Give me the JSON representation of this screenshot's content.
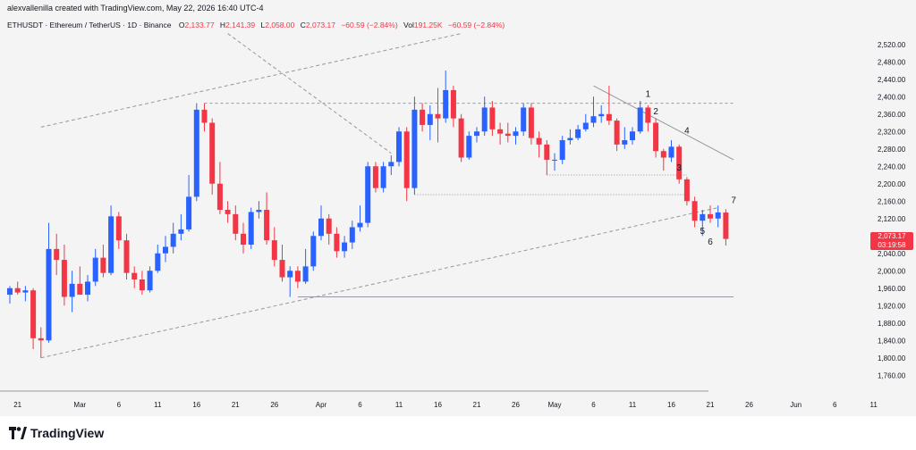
{
  "header": {
    "credit": "alexvallenilla created with TradingView.com, May 22, 2026 16:40 UTC-4",
    "symbol": "ETHUSDT · Ethereum / TetherUS · 1D · Binance",
    "open_label": "O",
    "open": "2,133.77",
    "high_label": "H",
    "high": "2,141.39",
    "low_label": "L",
    "low": "2,058.00",
    "close_label": "C",
    "close": "2,073.17",
    "change": "−60.59 (−2.84%)",
    "vol_label": "Vol",
    "vol": "191.25K",
    "vol_change": "−60.59 (−2.84%)"
  },
  "price_tag": {
    "price": "2,073.17",
    "countdown": "03:19:58"
  },
  "logo": {
    "text": "TradingView"
  },
  "colors": {
    "up": "#2962ff",
    "down": "#f23645",
    "background": "#f4f4f4",
    "text": "#131722",
    "grid_line": "#9598a1"
  },
  "chart_data": {
    "type": "candlestick",
    "y_axis": {
      "range": [
        1740,
        2540
      ],
      "ticks": [
        "1,760.00",
        "1,800.00",
        "1,840.00",
        "1,880.00",
        "1,920.00",
        "1,960.00",
        "2,000.00",
        "2,040.00",
        "2,080.00",
        "2,120.00",
        "2,160.00",
        "2,200.00",
        "2,240.00",
        "2,280.00",
        "2,320.00",
        "2,360.00",
        "2,400.00",
        "2,440.00",
        "2,480.00",
        "2,520.00"
      ]
    },
    "x_axis": {
      "start_date": "2026-02-20",
      "end_date": "2026-06-13",
      "ticks": [
        {
          "label": "21",
          "date": "2026-02-21"
        },
        {
          "label": "Mar",
          "date": "2026-03-01"
        },
        {
          "label": "6",
          "date": "2026-03-06"
        },
        {
          "label": "11",
          "date": "2026-03-11"
        },
        {
          "label": "16",
          "date": "2026-03-16"
        },
        {
          "label": "21",
          "date": "2026-03-21"
        },
        {
          "label": "26",
          "date": "2026-03-26"
        },
        {
          "label": "Apr",
          "date": "2026-04-01"
        },
        {
          "label": "6",
          "date": "2026-04-06"
        },
        {
          "label": "11",
          "date": "2026-04-11"
        },
        {
          "label": "16",
          "date": "2026-04-16"
        },
        {
          "label": "21",
          "date": "2026-04-21"
        },
        {
          "label": "26",
          "date": "2026-04-26"
        },
        {
          "label": "May",
          "date": "2026-05-01"
        },
        {
          "label": "6",
          "date": "2026-05-06"
        },
        {
          "label": "11",
          "date": "2026-05-11"
        },
        {
          "label": "16",
          "date": "2026-05-16"
        },
        {
          "label": "21",
          "date": "2026-05-21"
        },
        {
          "label": "26",
          "date": "2026-05-26"
        },
        {
          "label": "Jun",
          "date": "2026-06-01"
        },
        {
          "label": "6",
          "date": "2026-06-06"
        },
        {
          "label": "11",
          "date": "2026-06-11"
        }
      ]
    },
    "candles": [
      {
        "date": "2026-02-20",
        "o": 1945,
        "h": 1965,
        "l": 1925,
        "c": 1960
      },
      {
        "date": "2026-02-21",
        "o": 1960,
        "h": 1975,
        "l": 1945,
        "c": 1950
      },
      {
        "date": "2026-02-22",
        "o": 1950,
        "h": 1965,
        "l": 1930,
        "c": 1955
      },
      {
        "date": "2026-02-23",
        "o": 1955,
        "h": 1960,
        "l": 1820,
        "c": 1845
      },
      {
        "date": "2026-02-24",
        "o": 1845,
        "h": 1870,
        "l": 1800,
        "c": 1840
      },
      {
        "date": "2026-02-25",
        "o": 1840,
        "h": 2110,
        "l": 1835,
        "c": 2050
      },
      {
        "date": "2026-02-26",
        "o": 2050,
        "h": 2085,
        "l": 1990,
        "c": 2025
      },
      {
        "date": "2026-02-27",
        "o": 2025,
        "h": 2060,
        "l": 1920,
        "c": 1940
      },
      {
        "date": "2026-02-28",
        "o": 1940,
        "h": 2000,
        "l": 1905,
        "c": 1970
      },
      {
        "date": "2026-03-01",
        "o": 1970,
        "h": 2010,
        "l": 1950,
        "c": 1945
      },
      {
        "date": "2026-03-02",
        "o": 1945,
        "h": 1990,
        "l": 1930,
        "c": 1975
      },
      {
        "date": "2026-03-03",
        "o": 1975,
        "h": 2050,
        "l": 1965,
        "c": 2030
      },
      {
        "date": "2026-03-04",
        "o": 2030,
        "h": 2060,
        "l": 1985,
        "c": 1995
      },
      {
        "date": "2026-03-05",
        "o": 1995,
        "h": 2150,
        "l": 1990,
        "c": 2125
      },
      {
        "date": "2026-03-06",
        "o": 2125,
        "h": 2135,
        "l": 2050,
        "c": 2070
      },
      {
        "date": "2026-03-07",
        "o": 2070,
        "h": 2085,
        "l": 1980,
        "c": 1995
      },
      {
        "date": "2026-03-08",
        "o": 1995,
        "h": 2010,
        "l": 1960,
        "c": 1980
      },
      {
        "date": "2026-03-09",
        "o": 1980,
        "h": 2000,
        "l": 1945,
        "c": 1955
      },
      {
        "date": "2026-03-10",
        "o": 1955,
        "h": 2010,
        "l": 1950,
        "c": 2000
      },
      {
        "date": "2026-03-11",
        "o": 2000,
        "h": 2060,
        "l": 1995,
        "c": 2040
      },
      {
        "date": "2026-03-12",
        "o": 2040,
        "h": 2080,
        "l": 2020,
        "c": 2055
      },
      {
        "date": "2026-03-13",
        "o": 2055,
        "h": 2110,
        "l": 2040,
        "c": 2085
      },
      {
        "date": "2026-03-14",
        "o": 2085,
        "h": 2130,
        "l": 2070,
        "c": 2095
      },
      {
        "date": "2026-03-15",
        "o": 2095,
        "h": 2220,
        "l": 2090,
        "c": 2170
      },
      {
        "date": "2026-03-16",
        "o": 2170,
        "h": 2385,
        "l": 2160,
        "c": 2370
      },
      {
        "date": "2026-03-17",
        "o": 2370,
        "h": 2385,
        "l": 2320,
        "c": 2340
      },
      {
        "date": "2026-03-18",
        "o": 2340,
        "h": 2350,
        "l": 2175,
        "c": 2200
      },
      {
        "date": "2026-03-19",
        "o": 2200,
        "h": 2250,
        "l": 2130,
        "c": 2140
      },
      {
        "date": "2026-03-20",
        "o": 2140,
        "h": 2160,
        "l": 2110,
        "c": 2130
      },
      {
        "date": "2026-03-21",
        "o": 2130,
        "h": 2150,
        "l": 2070,
        "c": 2085
      },
      {
        "date": "2026-03-22",
        "o": 2085,
        "h": 2110,
        "l": 2040,
        "c": 2060
      },
      {
        "date": "2026-03-23",
        "o": 2060,
        "h": 2145,
        "l": 2050,
        "c": 2135
      },
      {
        "date": "2026-03-24",
        "o": 2135,
        "h": 2160,
        "l": 2120,
        "c": 2140
      },
      {
        "date": "2026-03-25",
        "o": 2140,
        "h": 2180,
        "l": 2060,
        "c": 2070
      },
      {
        "date": "2026-03-26",
        "o": 2070,
        "h": 2100,
        "l": 2010,
        "c": 2025
      },
      {
        "date": "2026-03-27",
        "o": 2025,
        "h": 2060,
        "l": 1975,
        "c": 1985
      },
      {
        "date": "2026-03-28",
        "o": 1985,
        "h": 2010,
        "l": 1940,
        "c": 2000
      },
      {
        "date": "2026-03-29",
        "o": 2000,
        "h": 2010,
        "l": 1960,
        "c": 1975
      },
      {
        "date": "2026-03-30",
        "o": 1975,
        "h": 2050,
        "l": 1970,
        "c": 2010
      },
      {
        "date": "2026-03-31",
        "o": 2010,
        "h": 2090,
        "l": 2000,
        "c": 2080
      },
      {
        "date": "2026-04-01",
        "o": 2080,
        "h": 2150,
        "l": 2070,
        "c": 2120
      },
      {
        "date": "2026-04-02",
        "o": 2120,
        "h": 2130,
        "l": 2060,
        "c": 2085
      },
      {
        "date": "2026-04-03",
        "o": 2085,
        "h": 2100,
        "l": 2030,
        "c": 2045
      },
      {
        "date": "2026-04-04",
        "o": 2045,
        "h": 2080,
        "l": 2030,
        "c": 2065
      },
      {
        "date": "2026-04-05",
        "o": 2065,
        "h": 2115,
        "l": 2050,
        "c": 2100
      },
      {
        "date": "2026-04-06",
        "o": 2100,
        "h": 2150,
        "l": 2090,
        "c": 2110
      },
      {
        "date": "2026-04-07",
        "o": 2110,
        "h": 2250,
        "l": 2100,
        "c": 2240
      },
      {
        "date": "2026-04-08",
        "o": 2240,
        "h": 2250,
        "l": 2180,
        "c": 2190
      },
      {
        "date": "2026-04-09",
        "o": 2190,
        "h": 2250,
        "l": 2180,
        "c": 2240
      },
      {
        "date": "2026-04-10",
        "o": 2240,
        "h": 2265,
        "l": 2220,
        "c": 2250
      },
      {
        "date": "2026-04-11",
        "o": 2250,
        "h": 2330,
        "l": 2240,
        "c": 2320
      },
      {
        "date": "2026-04-12",
        "o": 2320,
        "h": 2330,
        "l": 2160,
        "c": 2190
      },
      {
        "date": "2026-04-13",
        "o": 2190,
        "h": 2400,
        "l": 2175,
        "c": 2370
      },
      {
        "date": "2026-04-14",
        "o": 2370,
        "h": 2385,
        "l": 2320,
        "c": 2335
      },
      {
        "date": "2026-04-15",
        "o": 2335,
        "h": 2380,
        "l": 2300,
        "c": 2360
      },
      {
        "date": "2026-04-16",
        "o": 2360,
        "h": 2420,
        "l": 2295,
        "c": 2350
      },
      {
        "date": "2026-04-17",
        "o": 2350,
        "h": 2460,
        "l": 2340,
        "c": 2415
      },
      {
        "date": "2026-04-18",
        "o": 2415,
        "h": 2425,
        "l": 2330,
        "c": 2350
      },
      {
        "date": "2026-04-19",
        "o": 2350,
        "h": 2360,
        "l": 2250,
        "c": 2260
      },
      {
        "date": "2026-04-20",
        "o": 2260,
        "h": 2320,
        "l": 2255,
        "c": 2310
      },
      {
        "date": "2026-04-21",
        "o": 2310,
        "h": 2330,
        "l": 2295,
        "c": 2320
      },
      {
        "date": "2026-04-22",
        "o": 2320,
        "h": 2400,
        "l": 2310,
        "c": 2375
      },
      {
        "date": "2026-04-23",
        "o": 2375,
        "h": 2390,
        "l": 2310,
        "c": 2325
      },
      {
        "date": "2026-04-24",
        "o": 2325,
        "h": 2340,
        "l": 2290,
        "c": 2315
      },
      {
        "date": "2026-04-25",
        "o": 2315,
        "h": 2340,
        "l": 2295,
        "c": 2310
      },
      {
        "date": "2026-04-26",
        "o": 2310,
        "h": 2330,
        "l": 2290,
        "c": 2320
      },
      {
        "date": "2026-04-27",
        "o": 2320,
        "h": 2385,
        "l": 2310,
        "c": 2375
      },
      {
        "date": "2026-04-28",
        "o": 2375,
        "h": 2385,
        "l": 2290,
        "c": 2305
      },
      {
        "date": "2026-04-29",
        "o": 2305,
        "h": 2320,
        "l": 2260,
        "c": 2290
      },
      {
        "date": "2026-04-30",
        "o": 2290,
        "h": 2300,
        "l": 2220,
        "c": 2255
      },
      {
        "date": "2026-05-01",
        "o": 2255,
        "h": 2270,
        "l": 2230,
        "c": 2255
      },
      {
        "date": "2026-05-02",
        "o": 2255,
        "h": 2310,
        "l": 2245,
        "c": 2300
      },
      {
        "date": "2026-05-03",
        "o": 2300,
        "h": 2325,
        "l": 2290,
        "c": 2305
      },
      {
        "date": "2026-05-04",
        "o": 2305,
        "h": 2335,
        "l": 2300,
        "c": 2325
      },
      {
        "date": "2026-05-05",
        "o": 2325,
        "h": 2360,
        "l": 2320,
        "c": 2340
      },
      {
        "date": "2026-05-06",
        "o": 2340,
        "h": 2400,
        "l": 2330,
        "c": 2355
      },
      {
        "date": "2026-05-07",
        "o": 2355,
        "h": 2380,
        "l": 2340,
        "c": 2360
      },
      {
        "date": "2026-05-08",
        "o": 2360,
        "h": 2425,
        "l": 2335,
        "c": 2345
      },
      {
        "date": "2026-05-09",
        "o": 2345,
        "h": 2350,
        "l": 2275,
        "c": 2290
      },
      {
        "date": "2026-05-10",
        "o": 2290,
        "h": 2330,
        "l": 2280,
        "c": 2300
      },
      {
        "date": "2026-05-11",
        "o": 2300,
        "h": 2330,
        "l": 2290,
        "c": 2320
      },
      {
        "date": "2026-05-12",
        "o": 2320,
        "h": 2390,
        "l": 2315,
        "c": 2375
      },
      {
        "date": "2026-05-13",
        "o": 2375,
        "h": 2380,
        "l": 2320,
        "c": 2340
      },
      {
        "date": "2026-05-14",
        "o": 2340,
        "h": 2350,
        "l": 2260,
        "c": 2275
      },
      {
        "date": "2026-05-15",
        "o": 2275,
        "h": 2280,
        "l": 2230,
        "c": 2260
      },
      {
        "date": "2026-05-16",
        "o": 2260,
        "h": 2300,
        "l": 2250,
        "c": 2285
      },
      {
        "date": "2026-05-17",
        "o": 2285,
        "h": 2290,
        "l": 2200,
        "c": 2210
      },
      {
        "date": "2026-05-18",
        "o": 2210,
        "h": 2215,
        "l": 2150,
        "c": 2160
      },
      {
        "date": "2026-05-19",
        "o": 2160,
        "h": 2170,
        "l": 2100,
        "c": 2115
      },
      {
        "date": "2026-05-20",
        "o": 2115,
        "h": 2140,
        "l": 2080,
        "c": 2130
      },
      {
        "date": "2026-05-21",
        "o": 2130,
        "h": 2150,
        "l": 2110,
        "c": 2120
      },
      {
        "date": "2026-05-22",
        "o": 2120,
        "h": 2150,
        "l": 2100,
        "c": 2134
      },
      {
        "date": "2026-05-23",
        "o": 2133.77,
        "h": 2141.39,
        "l": 2058.0,
        "c": 2073.17
      }
    ],
    "wave_labels": [
      {
        "text": "1",
        "date": "2026-05-13",
        "price": 2400
      },
      {
        "text": "2",
        "date": "2026-05-14",
        "price": 2360
      },
      {
        "text": "3",
        "date": "2026-05-17",
        "price": 2230
      },
      {
        "text": "4",
        "date": "2026-05-18",
        "price": 2315
      },
      {
        "text": "5",
        "date": "2026-05-20",
        "price": 2085
      },
      {
        "text": "6",
        "date": "2026-05-21",
        "price": 2060
      },
      {
        "text": "7",
        "date": "2026-05-24",
        "price": 2155
      }
    ]
  }
}
